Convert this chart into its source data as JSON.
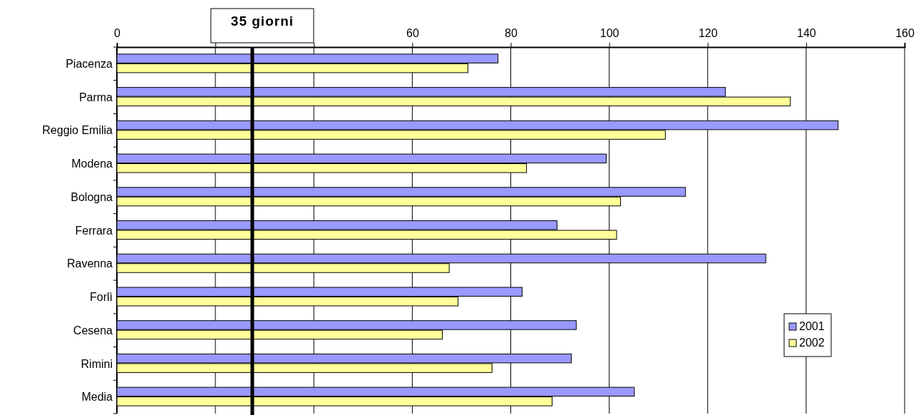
{
  "chart_data": {
    "type": "bar",
    "orientation": "horizontal",
    "categories": [
      "Piacenza",
      "Parma",
      "Reggio Emilia",
      "Modena",
      "Bologna",
      "Ferrara",
      "Ravenna",
      "Forlì",
      "Cesena",
      "Rimini",
      "Media"
    ],
    "series": [
      {
        "name": "2001",
        "color": "#9999ff",
        "values": [
          77.4,
          123.6,
          146.5,
          99.4,
          115.5,
          89.4,
          131.8,
          82.3,
          93.3,
          92.3,
          105.1
        ]
      },
      {
        "name": "2002",
        "color": "#ffff99",
        "values": [
          71.3,
          136.8,
          111.4,
          83.2,
          102.3,
          101.5,
          67.5,
          69.3,
          66.1,
          76.2,
          88.4
        ]
      }
    ],
    "xlim": [
      0,
      160
    ],
    "xticks": [
      0,
      {
        "value": 20,
        "label": null
      },
      {
        "value": 40,
        "label": null
      },
      60,
      80,
      100,
      120,
      140,
      160
    ],
    "grid": "x",
    "legend": "bottom right",
    "ref_lines": [
      {
        "axis": "x",
        "value": 27.5,
        "label": "35 giorni",
        "color": "#000000"
      }
    ]
  }
}
